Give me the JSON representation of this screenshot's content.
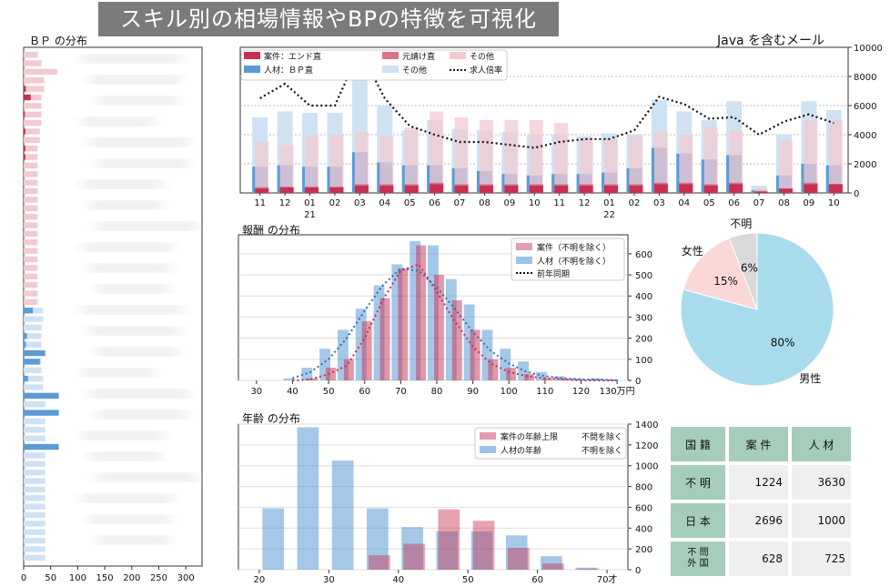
{
  "banner": "スキル別の相場情報やBPの特徴を可視化",
  "titles": {
    "bp": "ＢＰ の分布",
    "java": "Java を含むメール",
    "salary": "報酬 の分布",
    "age": "年齢 の分布"
  },
  "colors": {
    "end": "#c9304f",
    "bp": "#5b9bd5",
    "moto": "#d9728b",
    "other_pink": "#f3c9d2",
    "other_blue": "#cfe2f3",
    "male": "#a8dcec",
    "female": "#fbd8d8",
    "unknown": "#d9d9d9",
    "table_head": "#a6cdbb",
    "table_cell": "#efefef"
  },
  "bp_chart": {
    "xticks": [
      "0",
      "50",
      "100",
      "150",
      "200",
      "250",
      "300"
    ],
    "pink": [
      26,
      33,
      62,
      38,
      38,
      33,
      33,
      33,
      33,
      30,
      30,
      26,
      26,
      26,
      26,
      26,
      26,
      26,
      26,
      26,
      26,
      26,
      26,
      26,
      26,
      26,
      26,
      26,
      26,
      26
    ],
    "pink_dark": [
      0,
      0,
      0,
      0,
      4,
      13,
      0,
      2,
      0,
      3,
      0,
      3,
      3,
      0,
      0,
      0,
      0,
      0,
      0,
      0,
      0,
      0,
      0,
      0,
      0,
      0,
      0,
      0,
      0,
      0
    ],
    "blue": [
      36,
      36,
      34,
      33,
      33,
      33,
      33,
      33,
      36,
      36,
      40,
      40,
      40,
      40,
      40,
      40,
      40,
      40,
      40,
      40,
      40,
      40,
      40,
      40,
      40,
      40,
      40,
      40,
      40,
      40
    ],
    "blue_dark": [
      17,
      0,
      0,
      6,
      4,
      40,
      30,
      0,
      8,
      0,
      65,
      0,
      65,
      0,
      0,
      0,
      65,
      0,
      0,
      0,
      0,
      0,
      0,
      0,
      0,
      0,
      0,
      0,
      0,
      0
    ]
  },
  "java_chart": {
    "legend": [
      "案件：エンド直",
      "元請け直",
      "その他",
      "人材：ＢＰ直",
      "その他",
      "求人倍率"
    ],
    "months": [
      "11",
      "12",
      "01",
      "02",
      "03",
      "04",
      "05",
      "06",
      "07",
      "08",
      "09",
      "10",
      "11",
      "12",
      "01",
      "02",
      "03",
      "04",
      "05",
      "06",
      "07",
      "08",
      "09",
      "10"
    ],
    "years": {
      "2": "21",
      "14": "22"
    },
    "yticks": [
      "0",
      "2000",
      "4000",
      "6000",
      "8000",
      "10000"
    ],
    "ymax": 10000,
    "end_direct": [
      300,
      400,
      400,
      400,
      500,
      500,
      500,
      600,
      500,
      500,
      500,
      500,
      500,
      500,
      500,
      500,
      600,
      600,
      500,
      600,
      100,
      300,
      600,
      600
    ],
    "moto_direct": [
      400,
      400,
      400,
      400,
      600,
      600,
      600,
      700,
      600,
      600,
      600,
      600,
      600,
      600,
      600,
      600,
      700,
      700,
      600,
      700,
      100,
      300,
      700,
      600
    ],
    "pink_other": [
      3500,
      3300,
      3900,
      4000,
      4200,
      3900,
      4500,
      5600,
      5200,
      5000,
      5000,
      5000,
      4800,
      3800,
      3700,
      3900,
      4200,
      4000,
      4500,
      4300,
      300,
      3600,
      5000,
      5000
    ],
    "bp_direct": [
      1800,
      1900,
      1800,
      1800,
      2800,
      2100,
      1900,
      1900,
      1700,
      1500,
      1300,
      1200,
      1300,
      1300,
      1400,
      1700,
      3100,
      2700,
      2300,
      2600,
      200,
      1200,
      2000,
      1900
    ],
    "blue_other": [
      5200,
      5600,
      5500,
      5500,
      7800,
      6000,
      4300,
      5000,
      4400,
      4300,
      4200,
      4000,
      4000,
      3900,
      4100,
      4000,
      6400,
      5600,
      5000,
      6300,
      500,
      4000,
      6300,
      5700
    ],
    "ratio": [
      6500,
      7500,
      6000,
      6000,
      9800,
      6500,
      4600,
      4000,
      3500,
      3500,
      3300,
      3100,
      3500,
      3700,
      3700,
      4300,
      6600,
      6100,
      5100,
      5200,
      4000,
      4900,
      5400,
      4800
    ]
  },
  "salary_chart": {
    "legend": [
      "案件（不明を除く）",
      "人材（不明を除く）",
      "前年同期"
    ],
    "xlabels": [
      "30",
      "40",
      "50",
      "60",
      "70",
      "80",
      "90",
      "100",
      "110",
      "120",
      "130万円"
    ],
    "xvals": [
      30,
      40,
      50,
      60,
      70,
      80,
      90,
      100,
      110,
      120,
      130
    ],
    "yticks": [
      "0",
      "100",
      "200",
      "300",
      "400",
      "500",
      "600"
    ],
    "ymax": 690,
    "x": [
      40,
      45,
      50,
      55,
      60,
      65,
      70,
      75,
      80,
      85,
      90,
      95,
      100,
      105,
      110,
      115,
      120,
      125,
      130
    ],
    "jobs": [
      0,
      10,
      60,
      100,
      280,
      390,
      530,
      640,
      500,
      380,
      240,
      100,
      60,
      30,
      10,
      5,
      0,
      0,
      0
    ],
    "talent": [
      10,
      60,
      150,
      240,
      340,
      450,
      550,
      660,
      640,
      480,
      360,
      240,
      150,
      90,
      40,
      20,
      10,
      10,
      5
    ],
    "prev_jobs": [
      0,
      5,
      30,
      70,
      200,
      380,
      520,
      550,
      420,
      280,
      160,
      80,
      40,
      20,
      10,
      5,
      0,
      0,
      0
    ],
    "prev_talent": [
      10,
      40,
      100,
      200,
      330,
      450,
      530,
      520,
      440,
      340,
      230,
      140,
      80,
      40,
      20,
      10,
      5,
      5,
      0
    ]
  },
  "pie_chart": {
    "slices": [
      {
        "label": "男性",
        "pct": "80%",
        "value": 80
      },
      {
        "label": "女性",
        "pct": "15%",
        "value": 15
      },
      {
        "label": "不明",
        "pct": "6%",
        "value": 6
      }
    ]
  },
  "age_chart": {
    "legend": [
      {
        "label": "案件の年齢上限",
        "note": "不問を除く"
      },
      {
        "label": "人材の年齢",
        "note": "不明を除く"
      }
    ],
    "xlabels": [
      "20",
      "30",
      "40",
      "50",
      "60",
      "70才"
    ],
    "xvals": [
      20,
      30,
      40,
      50,
      60,
      70
    ],
    "yticks": [
      "0",
      "200",
      "400",
      "600",
      "800",
      "1000",
      "1200",
      "1400"
    ],
    "ymax": 1400,
    "x": [
      22,
      27,
      32,
      37,
      42,
      47,
      52,
      57,
      62,
      67
    ],
    "jobs": [
      0,
      0,
      0,
      140,
      250,
      580,
      470,
      210,
      60,
      10
    ],
    "talent": [
      590,
      1370,
      1050,
      590,
      410,
      370,
      370,
      330,
      130,
      20
    ]
  },
  "table": {
    "headers": [
      "国 籍",
      "案 件",
      "人 材"
    ],
    "rows": [
      [
        "不 明",
        "1224",
        "3630"
      ],
      [
        "日 本",
        "2696",
        "1000"
      ],
      [
        "不 問\n外 国",
        "628",
        "725"
      ]
    ]
  }
}
